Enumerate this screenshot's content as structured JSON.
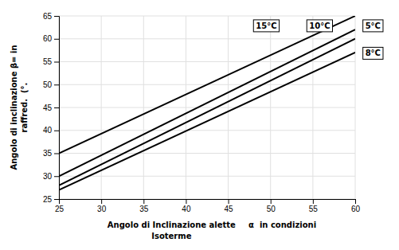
{
  "chart_data": {
    "type": "line",
    "xlabel": [
      "Angolo di Inclinazione alette",
      "Isoterme",
      "α  in condizioni"
    ],
    "ylabel": [
      "Angolo di inclinazione β= in",
      "raffred.  (°."
    ],
    "x": [
      25,
      60
    ],
    "series": [
      {
        "values": [
          35.0,
          65.0
        ]
      },
      {
        "values": [
          30.0,
          62.0
        ]
      },
      {
        "values": [
          28.0,
          60.0
        ]
      },
      {
        "values": [
          27.0,
          57.0
        ]
      }
    ],
    "color": "#000000",
    "xlim": [
      25,
      60
    ],
    "ylim": [
      25,
      65
    ],
    "xticks": [
      25,
      30,
      35,
      40,
      45,
      50,
      55,
      60
    ],
    "yticks": [
      25,
      30,
      35,
      40,
      45,
      50,
      55,
      60,
      65
    ],
    "grid": true,
    "annotations": [
      "5°C",
      "10°C",
      "15°C",
      "8°C"
    ]
  }
}
